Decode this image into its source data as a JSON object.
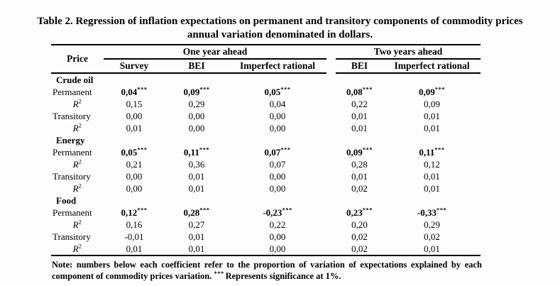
{
  "title": {
    "line1": "Table 2. Regression of inflation expectations on permanent and transitory components of commodity prices",
    "line2": "annual variation denominated in dollars."
  },
  "table": {
    "price_header": "Price",
    "groups": [
      {
        "label": "One year ahead",
        "columns": [
          "Survey",
          "BEI",
          "Imperfect rational"
        ]
      },
      {
        "label": "Two years ahead",
        "columns": [
          "BEI",
          "Imperfect rational"
        ]
      }
    ],
    "row_labels": {
      "permanent": "Permanent",
      "transitory": "Transitory",
      "r2_base": "R",
      "r2_sup": "2"
    },
    "significance_stars": "***",
    "sections": [
      {
        "name": "Crude oil",
        "permanent": [
          "0,04",
          "0,09",
          "0,05",
          "0,08",
          "0,09"
        ],
        "permanent_stars": [
          "***",
          "***",
          "***",
          "***",
          "***"
        ],
        "permanent_r2": [
          "0,15",
          "0,29",
          "0,04",
          "0,22",
          "0,09"
        ],
        "transitory": [
          "0,00",
          "0,00",
          "0,00",
          "0,01",
          "0,01"
        ],
        "transitory_r2": [
          "0,01",
          "0,00",
          "0,00",
          "0,01",
          "0,01"
        ]
      },
      {
        "name": "Energy",
        "permanent": [
          "0,05",
          "0,11",
          "0,07",
          "0,09",
          "0,11"
        ],
        "permanent_stars": [
          "***",
          "***",
          "***",
          "***",
          "***"
        ],
        "permanent_r2": [
          "0,21",
          "0,36",
          "0,07",
          "0,28",
          "0,12"
        ],
        "transitory": [
          "0,00",
          "0,01",
          "0,00",
          "0,01",
          "0,01"
        ],
        "transitory_r2": [
          "0,00",
          "0,01",
          "0,00",
          "0,02",
          "0,01"
        ]
      },
      {
        "name": "Food",
        "permanent": [
          "0,12",
          "0,28",
          "-0,23",
          "0,23",
          "-0,33"
        ],
        "permanent_stars": [
          "***",
          "***",
          "***",
          "***",
          "***"
        ],
        "permanent_r2": [
          "0,16",
          "0,27",
          "0,22",
          "0,20",
          "0,29"
        ],
        "transitory": [
          "-0,01",
          "0,01",
          "0,00",
          "0,02",
          "0,02"
        ],
        "transitory_r2": [
          "0,01",
          "0,01",
          "0,00",
          "0,02",
          "0,01"
        ]
      }
    ]
  },
  "note": {
    "lead": "Note: numbers below each coefficient refer to the proportion of variation of expectations explained by each component of commodity prices variation.",
    "stars": "***",
    "tail": "Represents significance at 1%."
  }
}
